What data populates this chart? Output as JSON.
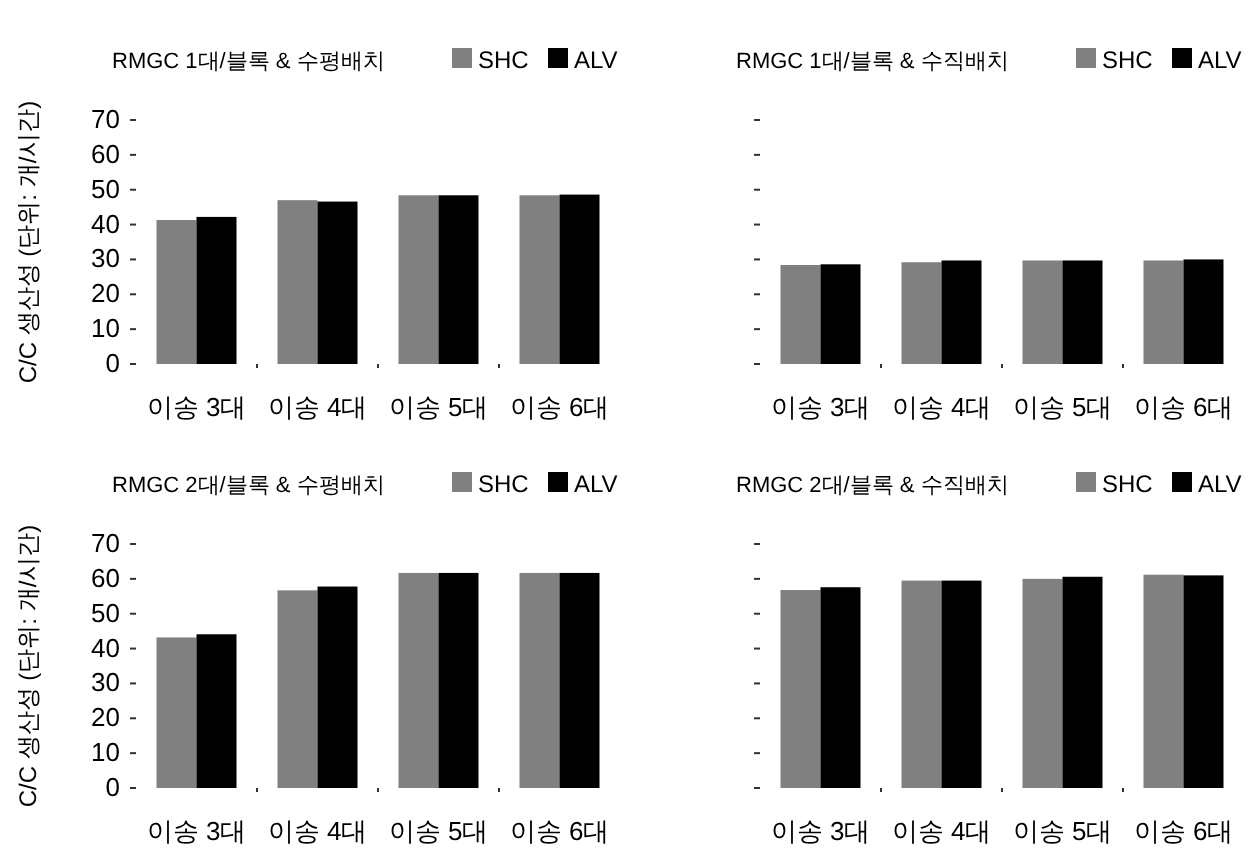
{
  "chart_data": [
    {
      "type": "bar",
      "title": "RMGC 1대/블록 & 수평배치",
      "ylabel": "C/C 생산성 (단위: 개/시간)",
      "categories": [
        "이송 3대",
        "이송 4대",
        "이송 5대",
        "이송 6대"
      ],
      "series": [
        {
          "name": "SHC",
          "color": "#808080",
          "values": [
            41.3,
            47,
            48.4,
            48.4
          ]
        },
        {
          "name": "ALV",
          "color": "#000000",
          "values": [
            42.2,
            46.6,
            48.4,
            48.6
          ]
        }
      ],
      "ylim": [
        0,
        70
      ],
      "yticks": [
        0,
        10,
        20,
        30,
        40,
        50,
        60,
        70
      ],
      "legend": "top right"
    },
    {
      "type": "bar",
      "title": "RMGC 1대/블록 & 수직배치",
      "categories": [
        "이송 3대",
        "이송 4대",
        "이송 5대",
        "이송 6대"
      ],
      "series": [
        {
          "name": "SHC",
          "color": "#808080",
          "values": [
            28.4,
            29.2,
            29.7,
            29.7
          ]
        },
        {
          "name": "ALV",
          "color": "#000000",
          "values": [
            28.6,
            29.7,
            29.7,
            30
          ]
        }
      ],
      "ylim": [
        0,
        70
      ],
      "yticks": [
        0,
        10,
        20,
        30,
        40,
        50,
        60,
        70
      ],
      "legend": "top right",
      "tick_labels": "x"
    },
    {
      "type": "bar",
      "title": "RMGC 2대/블록 & 수평배치",
      "ylabel": "C/C 생산성 (단위: 개/시간)",
      "categories": [
        "이송 3대",
        "이송 4대",
        "이송 5대",
        "이송 6대"
      ],
      "series": [
        {
          "name": "SHC",
          "color": "#808080",
          "values": [
            43.2,
            56.7,
            61.7,
            61.7
          ]
        },
        {
          "name": "ALV",
          "color": "#000000",
          "values": [
            44.1,
            57.8,
            61.7,
            61.7
          ]
        }
      ],
      "ylim": [
        0,
        70
      ],
      "yticks": [
        0,
        10,
        20,
        30,
        40,
        50,
        60,
        70
      ],
      "legend": "top right"
    },
    {
      "type": "bar",
      "title": "RMGC 2대/블록 & 수직배치",
      "categories": [
        "이송 3대",
        "이송 4대",
        "이송 5대",
        "이송 6대"
      ],
      "series": [
        {
          "name": "SHC",
          "color": "#808080",
          "values": [
            56.8,
            59.5,
            60,
            61.2
          ]
        },
        {
          "name": "ALV",
          "color": "#000000",
          "values": [
            57.6,
            59.5,
            60.6,
            61
          ]
        }
      ],
      "ylim": [
        0,
        70
      ],
      "yticks": [
        0,
        10,
        20,
        30,
        40,
        50,
        60,
        70
      ],
      "legend": "top right",
      "tick_labels": "x"
    }
  ]
}
